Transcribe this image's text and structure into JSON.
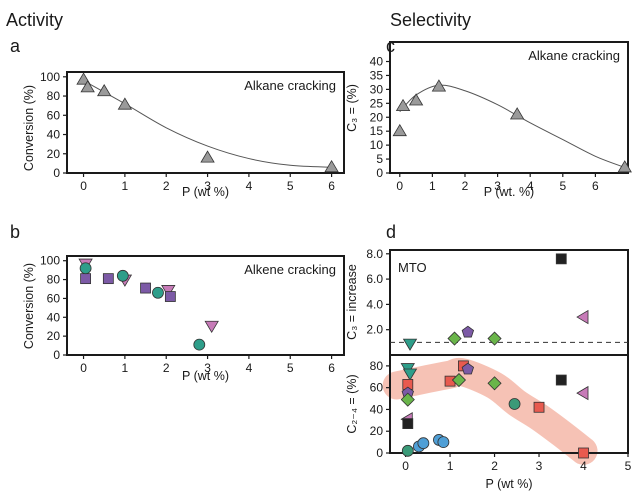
{
  "headers": {
    "activity": "Activity",
    "selectivity": "Selectivity"
  },
  "colors": {
    "gray": "#9a9a9a",
    "purple": "#7c5aa6",
    "pink": "#c77bb8",
    "green": "#3a9a78",
    "teal": "#2e9e8a",
    "lime": "#6ab54a",
    "blue": "#4f9fd6",
    "red": "#e85a4f",
    "black": "#222222",
    "band": "#f5b7a8"
  },
  "chart_data": [
    {
      "id": "a",
      "panel_label": "a",
      "type": "scatter",
      "annotation": "Alkane cracking",
      "xlabel": "P (wt %)",
      "ylabel": "Conversion (%)",
      "xlim": [
        -0.4,
        6.3
      ],
      "ylim": [
        0,
        105
      ],
      "xticks": [
        "0",
        "1",
        "2",
        "3",
        "4",
        "5",
        "6"
      ],
      "yticks": [
        "0",
        "20",
        "40",
        "60",
        "80",
        "100"
      ],
      "series": [
        {
          "marker": "triangle-up",
          "color": "gray",
          "points": [
            [
              0,
              97
            ],
            [
              0.1,
              89
            ],
            [
              0.5,
              85
            ],
            [
              1,
              71
            ],
            [
              3,
              16
            ],
            [
              6,
              6
            ]
          ]
        }
      ],
      "curve": [
        [
          0,
          96
        ],
        [
          1,
          72
        ],
        [
          2,
          47
        ],
        [
          3,
          28
        ],
        [
          4,
          15
        ],
        [
          5,
          8
        ],
        [
          6,
          6
        ]
      ]
    },
    {
      "id": "b",
      "panel_label": "b",
      "type": "scatter",
      "annotation": "Alkene cracking",
      "xlabel": "P (wt %)",
      "ylabel": "Conversion (%)",
      "xlim": [
        -0.4,
        6.3
      ],
      "ylim": [
        0,
        105
      ],
      "xticks": [
        "0",
        "1",
        "2",
        "3",
        "4",
        "5",
        "6"
      ],
      "yticks": [
        "0",
        "20",
        "40",
        "60",
        "80",
        "100"
      ],
      "series": [
        {
          "marker": "triangle-down",
          "color": "pink",
          "points": [
            [
              0.05,
              97
            ],
            [
              1,
              80
            ],
            [
              2.05,
              69
            ],
            [
              3.1,
              31
            ]
          ]
        },
        {
          "marker": "square",
          "color": "purple",
          "points": [
            [
              0.05,
              81
            ],
            [
              0.6,
              81
            ],
            [
              1.5,
              71
            ],
            [
              2.1,
              62
            ]
          ]
        },
        {
          "marker": "circle",
          "color": "teal",
          "points": [
            [
              0.05,
              92
            ],
            [
              0.95,
              84
            ],
            [
              1.8,
              66
            ],
            [
              2.8,
              11
            ]
          ]
        }
      ]
    },
    {
      "id": "c",
      "panel_label": "c",
      "type": "scatter",
      "annotation": "Alkane cracking",
      "xlabel": "P (wt. %)",
      "ylabel": "C₃ = (%)",
      "xlim": [
        -0.3,
        7.0
      ],
      "ylim": [
        0,
        47
      ],
      "xticks": [
        "0",
        "1",
        "2",
        "3",
        "4",
        "5",
        "6"
      ],
      "yticks": [
        "0",
        "5",
        "10",
        "15",
        "20",
        "25",
        "30",
        "35",
        "40"
      ],
      "series": [
        {
          "marker": "triangle-up",
          "color": "gray",
          "points": [
            [
              0,
              15
            ],
            [
              0.1,
              24
            ],
            [
              0.5,
              26
            ],
            [
              1.2,
              31
            ],
            [
              3.6,
              21
            ],
            [
              6.9,
              2
            ]
          ]
        }
      ],
      "curve": [
        [
          0,
          22
        ],
        [
          0.5,
          28
        ],
        [
          1.2,
          31.5
        ],
        [
          2,
          29.5
        ],
        [
          3,
          24.5
        ],
        [
          4,
          18
        ],
        [
          5,
          12
        ],
        [
          6,
          6
        ],
        [
          6.9,
          2
        ]
      ]
    },
    {
      "id": "d-top",
      "panel_label": "d",
      "type": "scatter",
      "annotation": "MTO",
      "ylabel": "C₃ = increase",
      "xlim": [
        -0.35,
        5.0
      ],
      "ylim": [
        0,
        8.3
      ],
      "yticks": [
        "2.0",
        "4.0",
        "6.0",
        "8.0"
      ],
      "reference_line_y": 1.0,
      "series": [
        {
          "marker": "triangle-down",
          "color": "teal",
          "points": [
            [
              0.1,
              0.9
            ]
          ]
        },
        {
          "marker": "diamond",
          "color": "lime",
          "points": [
            [
              1.1,
              1.3
            ],
            [
              2,
              1.3
            ]
          ]
        },
        {
          "marker": "pentagon",
          "color": "purple",
          "points": [
            [
              1.4,
              1.8
            ]
          ]
        },
        {
          "marker": "square",
          "color": "black",
          "points": [
            [
              3.5,
              7.6
            ]
          ]
        },
        {
          "marker": "triangle-left",
          "color": "pink",
          "points": [
            [
              4,
              3.0
            ]
          ]
        }
      ]
    },
    {
      "id": "d-bottom",
      "type": "scatter",
      "xlabel": "P (wt %)",
      "ylabel": "C₂₋₄ = (%)",
      "xlim": [
        -0.35,
        5.0
      ],
      "ylim": [
        0,
        90
      ],
      "xticks": [
        "0",
        "1",
        "2",
        "3",
        "4",
        "5"
      ],
      "yticks": [
        "0",
        "20",
        "40",
        "60",
        "80"
      ],
      "band": [
        [
          -0.2,
          62
        ],
        [
          0.5,
          68
        ],
        [
          1,
          72
        ],
        [
          1.3,
          74
        ],
        [
          2,
          62
        ],
        [
          2.5,
          46
        ],
        [
          3,
          33
        ],
        [
          3.5,
          18
        ],
        [
          4,
          2
        ]
      ],
      "series": [
        {
          "marker": "triangle-down",
          "color": "teal",
          "points": [
            [
              0.05,
              78
            ],
            [
              0.1,
              73
            ]
          ]
        },
        {
          "marker": "square",
          "color": "red",
          "points": [
            [
              0.05,
              63
            ],
            [
              1,
              66
            ],
            [
              1.3,
              80
            ],
            [
              3,
              42
            ],
            [
              4,
              0
            ]
          ]
        },
        {
          "marker": "pentagon",
          "color": "purple",
          "points": [
            [
              0.05,
              55
            ],
            [
              1.4,
              77
            ]
          ]
        },
        {
          "marker": "diamond",
          "color": "lime",
          "points": [
            [
              0.05,
              49
            ],
            [
              1.2,
              67
            ],
            [
              2,
              64
            ]
          ]
        },
        {
          "marker": "triangle-left",
          "color": "pink",
          "points": [
            [
              0.05,
              31
            ],
            [
              4,
              55
            ]
          ]
        },
        {
          "marker": "square",
          "color": "black",
          "points": [
            [
              0.05,
              27
            ],
            [
              3.5,
              67
            ]
          ]
        },
        {
          "marker": "circle",
          "color": "green",
          "points": [
            [
              0.05,
              2
            ],
            [
              2.45,
              45
            ]
          ]
        },
        {
          "marker": "circle",
          "color": "blue",
          "points": [
            [
              0.3,
              6
            ],
            [
              0.4,
              9
            ],
            [
              0.75,
              12
            ],
            [
              0.85,
              10
            ]
          ]
        }
      ]
    }
  ]
}
